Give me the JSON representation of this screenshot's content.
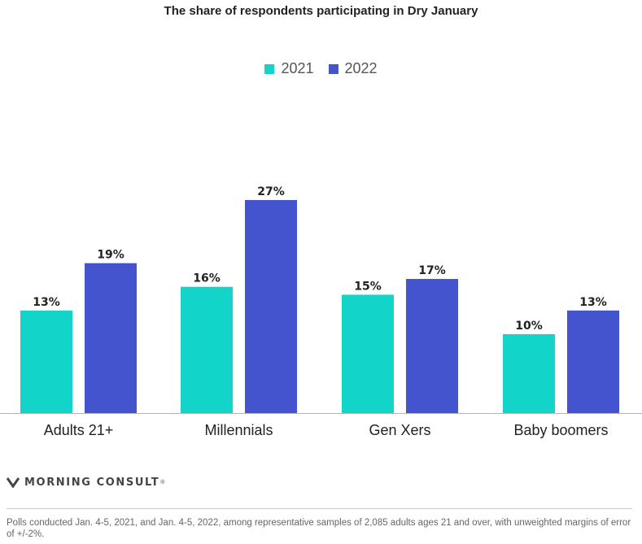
{
  "chart_data": {
    "type": "bar",
    "title": "The share of respondents participating in Dry January",
    "categories": [
      "Adults 21+",
      "Millennials",
      "Gen Xers",
      "Baby boomers"
    ],
    "series": [
      {
        "name": "2021",
        "color": "#12d4c9",
        "values": [
          13,
          16,
          15,
          10
        ],
        "labels": [
          "13%",
          "16%",
          "15%",
          "10%"
        ]
      },
      {
        "name": "2022",
        "color": "#4454cf",
        "values": [
          19,
          27,
          17,
          13
        ],
        "labels": [
          "19%",
          "27%",
          "17%",
          "13%"
        ]
      }
    ],
    "ylim": [
      0,
      35
    ],
    "xlabel": "",
    "ylabel": "",
    "legend_position": "top-center",
    "grid": false
  },
  "brand": {
    "name": "MORNING CONSULT",
    "trademark": "®",
    "logo_icon": "morning-consult-chevron-icon"
  },
  "footnote": "Polls conducted Jan. 4-5, 2021, and Jan. 4-5, 2022, among representative samples of 2,085 adults ages 21 and over, with unweighted margins of error of +/-2%."
}
